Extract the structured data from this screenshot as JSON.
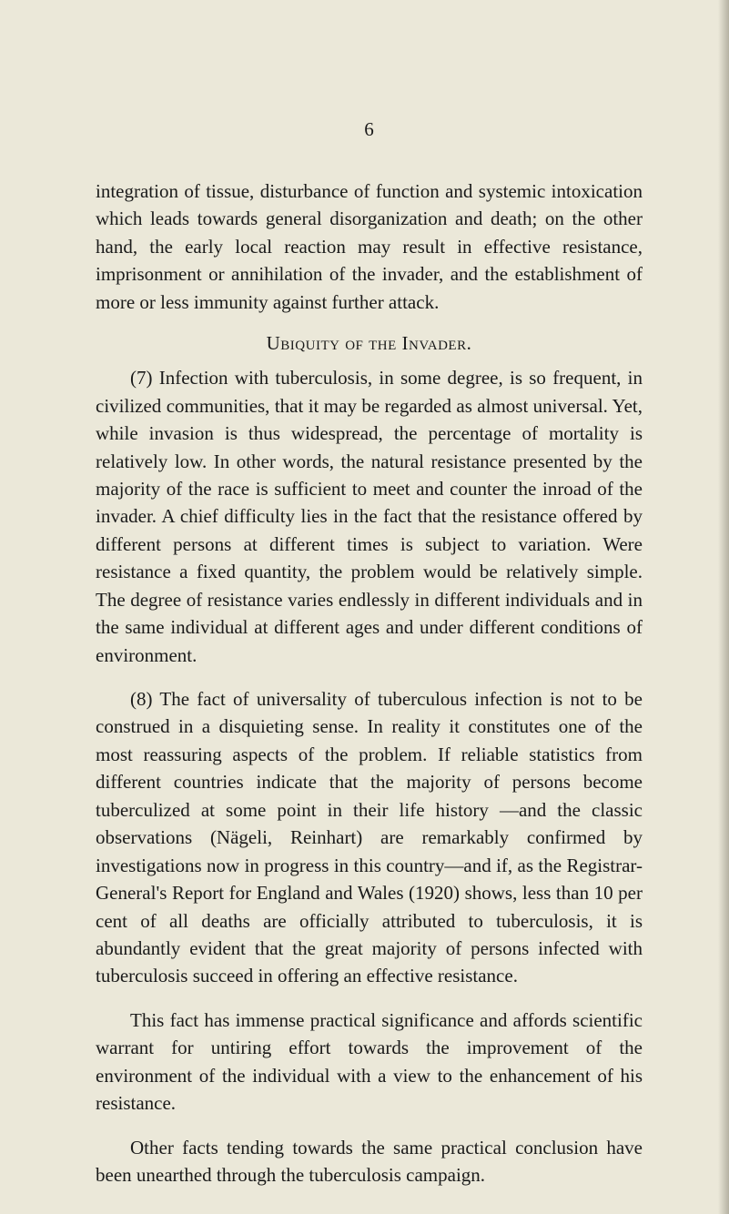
{
  "page": {
    "number": "6",
    "background_color": "#ebe8d9",
    "text_color": "#1a1a1a",
    "font_size": 21,
    "line_height": 1.45
  },
  "paragraphs": {
    "p1": "integration of tissue, disturbance of function and systemic intoxication which leads towards general disorganization and death; on the other hand, the early local reaction may result in effective resistance, imprisonment or annihilation of the invader, and the establishment of more or less immunity against further attack.",
    "heading": "Ubiquity of the Invader.",
    "p2": "(7) Infection with tuberculosis, in some degree, is so frequent, in civilized communities, that it may be regarded as almost universal. Yet, while invasion is thus widespread, the percentage of mortality is relatively low. In other words, the natural resistance presented by the majority of the race is sufficient to meet and counter the inroad of the invader. A chief difficulty lies in the fact that the resistance offered by different persons at different times is subject to variation. Were resistance a fixed quantity, the problem would be relatively simple. The degree of resistance varies endlessly in different individuals and in the same individual at different ages and under different conditions of environment.",
    "p3": "(8) The fact of universality of tuberculous infection is not to be construed in a disquieting sense. In reality it constitutes one of the most reassuring aspects of the problem. If reliable statistics from different countries indicate that the majority of persons become tuberculized at some point in their life history —and the classic observations (Nägeli, Reinhart) are remarkably confirmed by investigations now in progress in this country—and if, as the Registrar-General's Report for England and Wales (1920) shows, less than 10 per cent of all deaths are officially attributed to tuberculosis, it is abundantly evident that the great majority of persons infected with tuberculosis succeed in offering an effective resistance.",
    "p4": "This fact has immense practical significance and affords scientific warrant for untiring effort towards the improvement of the environment of the individual with a view to the enhancement of his resistance.",
    "p5": "Other facts tending towards the same practical conclusion have been unearthed through the tuberculosis campaign."
  }
}
